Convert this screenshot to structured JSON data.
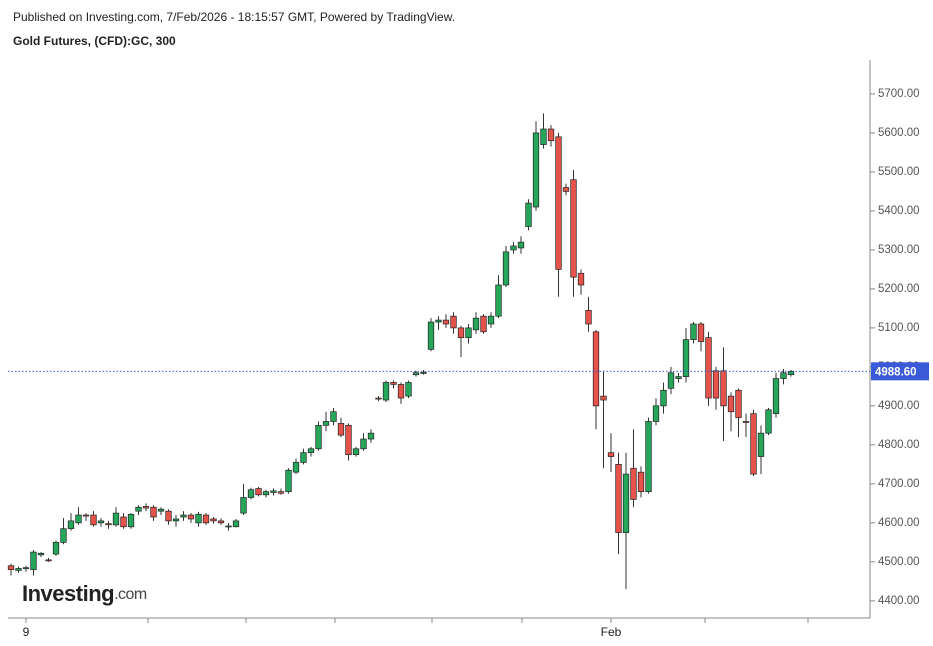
{
  "chart_data": {
    "type": "candlestick",
    "header": "Published on Investing.com, 7/Feb/2026 - 18:15:57 GMT, Powered by TradingView.",
    "title": "Gold Futures, (CFD):GC, 300",
    "logo": "Investing",
    "logo_suffix": ".com",
    "up_color": "#26a65b",
    "down_color": "#e5534b",
    "categories": [
      null,
      null,
      "9",
      null,
      null,
      null,
      null,
      null,
      null,
      null,
      null,
      null,
      null,
      null,
      null,
      null,
      null,
      null,
      null,
      null,
      null,
      null,
      null,
      null,
      null,
      null,
      null,
      null,
      null,
      null,
      null,
      null,
      null,
      null,
      null,
      null,
      null,
      null,
      null,
      null,
      null,
      null,
      null,
      null,
      null,
      null,
      null,
      null,
      null,
      null,
      null,
      null,
      null,
      null,
      null,
      null,
      null,
      null,
      null,
      null,
      null,
      null,
      null,
      null,
      null,
      null,
      null,
      null,
      null,
      null,
      null,
      null,
      null,
      null,
      null,
      null,
      null,
      null,
      null,
      null,
      "Feb",
      null,
      null,
      null,
      null,
      null,
      null,
      null,
      null,
      null,
      null,
      null,
      null,
      null,
      null,
      null,
      null,
      null,
      null,
      null,
      null,
      null,
      null,
      null,
      null
    ],
    "open": [
      4490,
      4478,
      4483,
      4480,
      4518,
      4505,
      4520,
      4550,
      4585,
      4600,
      4620,
      4620,
      4600,
      4598,
      4595,
      4615,
      4590,
      4630,
      4642,
      4640,
      4630,
      4630,
      4605,
      4615,
      4620,
      4600,
      4620,
      4610,
      4605,
      4590,
      4590,
      4625,
      4665,
      4688,
      4672,
      4678,
      4680,
      4680,
      4730,
      4755,
      4780,
      4790,
      4850,
      4860,
      4855,
      4850,
      4775,
      4790,
      4815,
      4920,
      4915,
      4960,
      4955,
      4925,
      4980,
      4985,
      5045,
      5115,
      5120,
      5130,
      5100,
      5075,
      5095,
      5130,
      5110,
      5130,
      5210,
      5300,
      5305,
      5360,
      5410,
      5570,
      5610,
      5590,
      5460,
      5480,
      5240,
      5145,
      5090,
      4925,
      4780,
      4750,
      4575,
      4740,
      4730,
      4680,
      4860,
      4900,
      4945,
      4970,
      4975,
      5070,
      5110,
      5075,
      4990,
      4990,
      4925,
      4940,
      4860,
      4880,
      4770,
      4830,
      4880,
      4970,
      4980
    ],
    "high": [
      4495,
      4488,
      4490,
      4530,
      4525,
      4510,
      4555,
      4612,
      4625,
      4640,
      4625,
      4630,
      4612,
      4605,
      4640,
      4625,
      4625,
      4645,
      4650,
      4645,
      4640,
      4635,
      4620,
      4630,
      4625,
      4628,
      4625,
      4615,
      4612,
      4600,
      4610,
      4700,
      4690,
      4692,
      4685,
      4688,
      4688,
      4740,
      4765,
      4790,
      4795,
      4860,
      4885,
      4895,
      4870,
      4855,
      4795,
      4830,
      4840,
      4925,
      4965,
      4965,
      4960,
      4965,
      4990,
      4992,
      5125,
      5130,
      5135,
      5140,
      5105,
      5110,
      5140,
      5135,
      5140,
      5235,
      5310,
      5320,
      5335,
      5430,
      5630,
      5650,
      5620,
      5600,
      5470,
      5505,
      5250,
      5180,
      5095,
      4990,
      4830,
      4780,
      4780,
      4840,
      4745,
      4870,
      4920,
      4960,
      5000,
      4985,
      5100,
      5115,
      5115,
      5090,
      5000,
      5050,
      4935,
      4945,
      4880,
      4890,
      4850,
      4895,
      4985,
      4995,
      4992
    ],
    "low": [
      4465,
      4472,
      4475,
      4465,
      4512,
      4500,
      4515,
      4545,
      4580,
      4595,
      4605,
      4590,
      4590,
      4585,
      4590,
      4585,
      4585,
      4620,
      4630,
      4605,
      4620,
      4595,
      4590,
      4605,
      4600,
      4590,
      4595,
      4598,
      4595,
      4580,
      4588,
      4620,
      4660,
      4668,
      4665,
      4670,
      4672,
      4675,
      4725,
      4750,
      4770,
      4785,
      4835,
      4850,
      4820,
      4760,
      4770,
      4785,
      4805,
      4912,
      4910,
      4945,
      4905,
      4920,
      4975,
      4980,
      5040,
      5095,
      5100,
      5085,
      5025,
      5060,
      5085,
      5085,
      5100,
      5125,
      5205,
      5290,
      5290,
      5350,
      5400,
      5560,
      5565,
      5180,
      5440,
      5180,
      5185,
      5090,
      4840,
      4740,
      4730,
      4520,
      4430,
      4640,
      4665,
      4675,
      4850,
      4880,
      4930,
      4960,
      4960,
      5060,
      5040,
      4900,
      4890,
      4810,
      4835,
      4820,
      4820,
      4720,
      4725,
      4825,
      4870,
      4955,
      4975
    ],
    "close": [
      4480,
      4483,
      4485,
      4525,
      4522,
      4503,
      4550,
      4585,
      4605,
      4620,
      4618,
      4595,
      4605,
      4595,
      4625,
      4590,
      4622,
      4640,
      4638,
      4615,
      4635,
      4605,
      4610,
      4620,
      4610,
      4622,
      4600,
      4605,
      4600,
      4592,
      4605,
      4665,
      4685,
      4672,
      4680,
      4682,
      4676,
      4735,
      4755,
      4780,
      4790,
      4850,
      4860,
      4885,
      4825,
      4775,
      4790,
      4815,
      4830,
      4918,
      4960,
      4955,
      4920,
      4960,
      4985,
      4986,
      5115,
      5120,
      5110,
      5100,
      5075,
      5100,
      5125,
      5090,
      5130,
      5210,
      5295,
      5310,
      5320,
      5420,
      5600,
      5610,
      5580,
      5250,
      5450,
      5230,
      5210,
      5110,
      4900,
      4915,
      4770,
      4575,
      4725,
      4660,
      4680,
      4860,
      4900,
      4940,
      4985,
      4975,
      5070,
      5110,
      5065,
      4920,
      4920,
      4900,
      4885,
      4870,
      4858,
      4725,
      4830,
      4890,
      4970,
      4985,
      4988.6
    ],
    "ylim": [
      4356,
      5787
    ],
    "yticks": [
      {
        "value": 4400,
        "label": "4400.00"
      },
      {
        "value": 4500,
        "label": "4500.00"
      },
      {
        "value": 4600,
        "label": "4600.00"
      },
      {
        "value": 4700,
        "label": "4700.00"
      },
      {
        "value": 4800,
        "label": "4800.00"
      },
      {
        "value": 4900,
        "label": "4900.00"
      },
      {
        "value": 5000,
        "label": "5000.00"
      },
      {
        "value": 5100,
        "label": "5100.00"
      },
      {
        "value": 5200,
        "label": "5200.00"
      },
      {
        "value": 5300,
        "label": "5300.00"
      },
      {
        "value": 5400,
        "label": "5400.00"
      },
      {
        "value": 5500,
        "label": "5500.00"
      },
      {
        "value": 5600,
        "label": "5600.00"
      },
      {
        "value": 5700,
        "label": "5700.00"
      }
    ],
    "last_price": {
      "value": 4988.6,
      "label": "4988.60"
    }
  }
}
